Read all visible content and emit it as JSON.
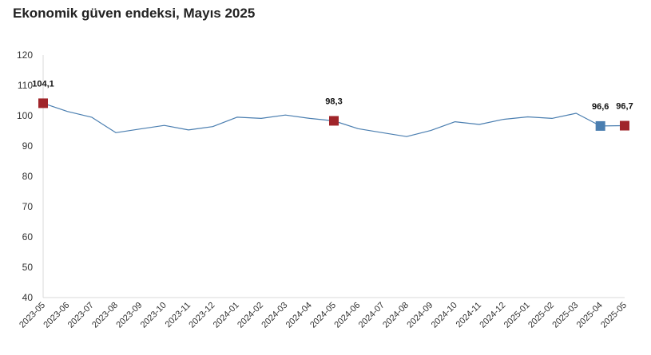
{
  "chart_data": {
    "type": "line",
    "title": "Ekonomik güven endeksi, Mayıs 2025",
    "xlabel": "",
    "ylabel": "",
    "ylim": [
      40,
      120
    ],
    "yticks": [
      40,
      50,
      60,
      70,
      80,
      90,
      100,
      110,
      120
    ],
    "grid": false,
    "legend": "none",
    "line_color": "#4a7eb0",
    "marker_colors": {
      "highlight": "#a0252a",
      "previous": "#4a7eb0"
    },
    "categories": [
      "2023-05",
      "2023-06",
      "2023-07",
      "2023-08",
      "2023-09",
      "2023-10",
      "2023-11",
      "2023-12",
      "2024-01",
      "2024-02",
      "2024-03",
      "2024-04",
      "2024-05",
      "2024-06",
      "2024-07",
      "2024-08",
      "2024-09",
      "2024-10",
      "2024-11",
      "2024-12",
      "2025-01",
      "2025-02",
      "2025-03",
      "2025-04",
      "2025-05"
    ],
    "series": [
      {
        "values": [
          104.1,
          101.4,
          99.5,
          94.4,
          95.6,
          96.8,
          95.3,
          96.4,
          99.5,
          99.1,
          100.2,
          99.1,
          98.3,
          95.7,
          94.4,
          93.1,
          95.1,
          98.0,
          97.1,
          98.8,
          99.6,
          99.1,
          100.8,
          96.6,
          96.7
        ]
      }
    ],
    "markers": [
      {
        "category": "2023-05",
        "value": 104.1,
        "label": "104,1",
        "color": "#a0252a"
      },
      {
        "category": "2024-05",
        "value": 98.3,
        "label": "98,3",
        "color": "#a0252a"
      },
      {
        "category": "2025-04",
        "value": 96.6,
        "label": "96,6",
        "color": "#4a7eb0"
      },
      {
        "category": "2025-05",
        "value": 96.7,
        "label": "96,7",
        "color": "#a0252a"
      }
    ]
  }
}
